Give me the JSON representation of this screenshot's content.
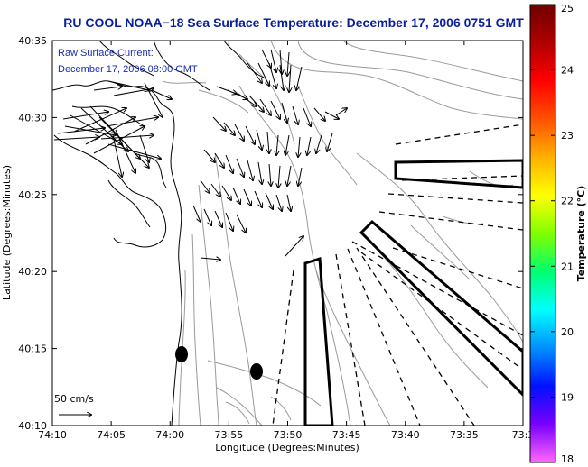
{
  "map": {
    "title": "RU COOL  NOAA−18  Sea Surface Temperature:  December 17, 2006 0751 GMT",
    "annotation_line1": "Raw Surface Current:",
    "annotation_line2": "December 17, 2006 08:00 GMT",
    "scale_label": "50 cm/s",
    "xlabel": "Longitude (Degrees:Minutes)",
    "ylabel": "Latitude (Degrees:Minutes)",
    "x_ticks": [
      "74:10",
      "74:05",
      "74:00",
      "73:55",
      "73:50",
      "73:45",
      "73:40",
      "73:35",
      "73:3"
    ],
    "y_ticks": [
      "40:35",
      "40:30",
      "40:25",
      "40:20",
      "40:15",
      "40:10"
    ]
  },
  "colorbar": {
    "label": "Temperature (°C)",
    "ticks": [
      "25",
      "24",
      "23",
      "22",
      "21",
      "20",
      "19",
      "18"
    ],
    "range": [
      18,
      25
    ],
    "colors": [
      "#ff66ff",
      "#7a00ff",
      "#0010ff",
      "#0090ff",
      "#00ffff",
      "#00ff70",
      "#80ff00",
      "#ffff00",
      "#ffb000",
      "#ff5000",
      "#ff0000",
      "#b00000",
      "#700000"
    ]
  },
  "icons": {
    "vector_field": "current-vector-arrows",
    "scale_arrow": "scale-arrow-icon",
    "buoy_markers": "buoy-marker-icon"
  }
}
